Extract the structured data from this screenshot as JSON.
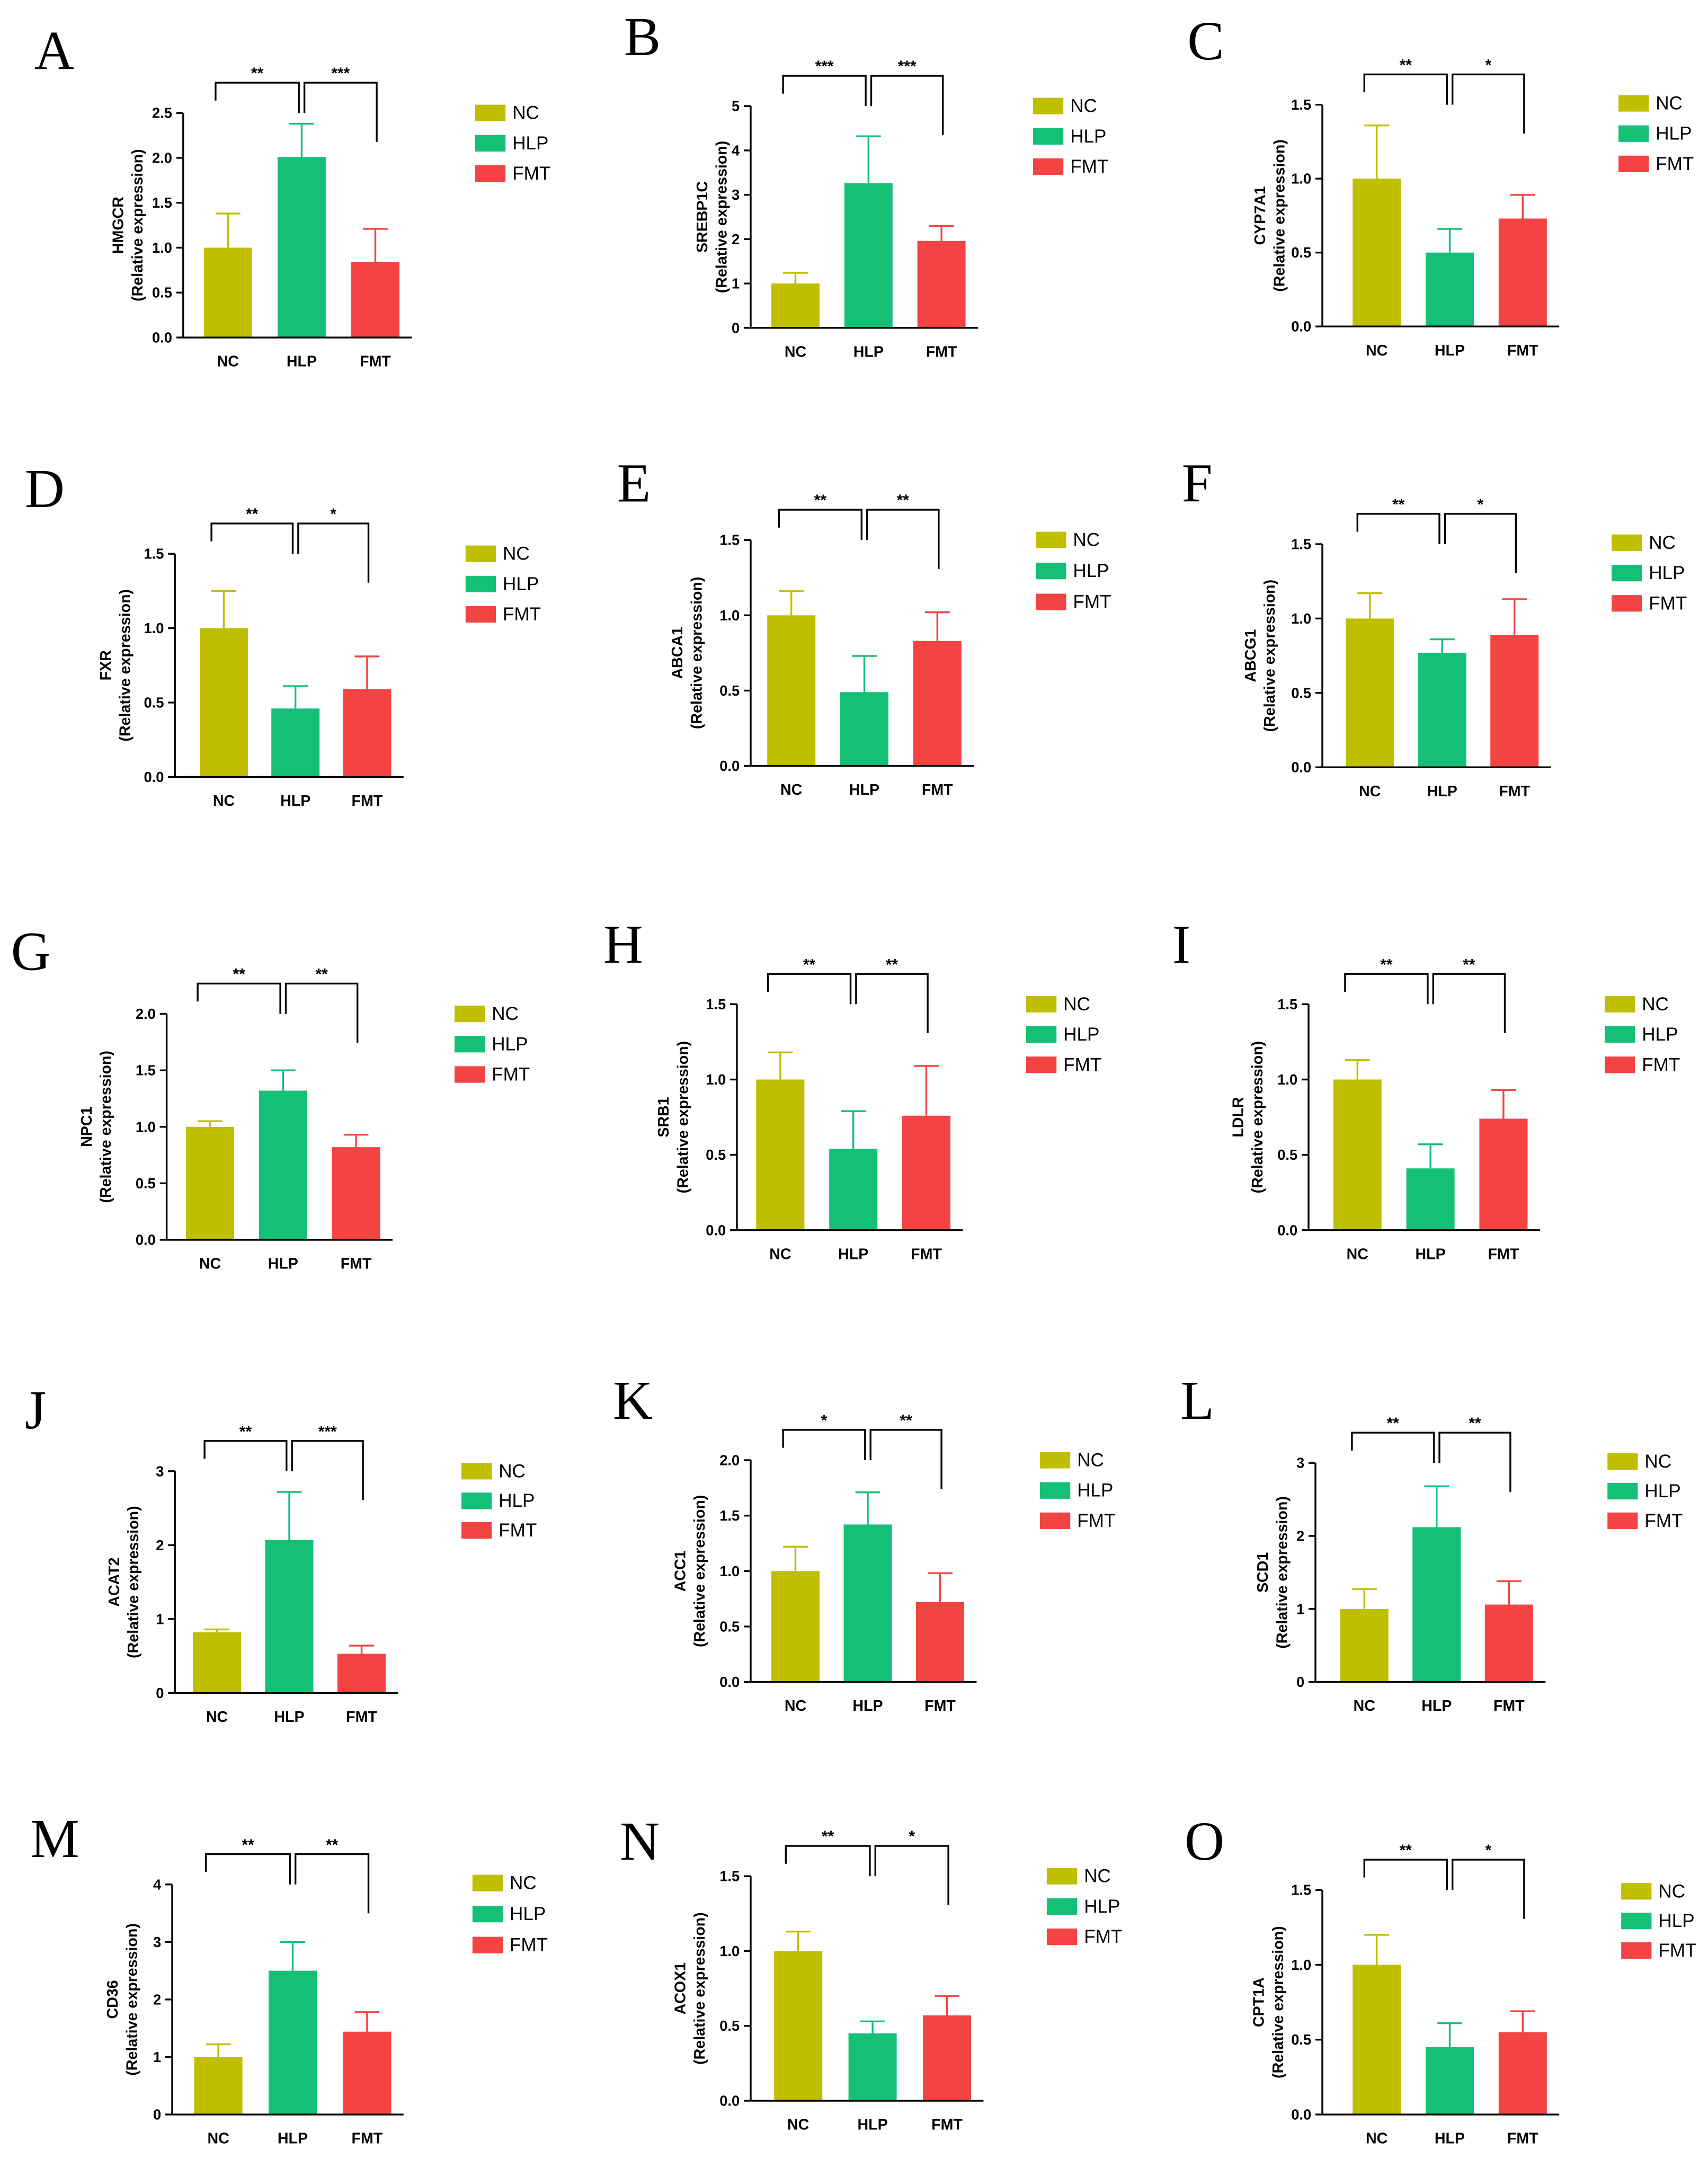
{
  "colors": {
    "NC": "#BFBF00",
    "HLP": "#14C076",
    "FMT": "#F44343"
  },
  "chart_data": [
    {
      "panel": "A",
      "type": "bar",
      "ylabel": "HMGCR",
      "ylabel_unit": "(Relative expression)",
      "categories": [
        "NC",
        "HLP",
        "FMT"
      ],
      "legend": [
        "NC",
        "HLP",
        "FMT"
      ],
      "values": [
        1.0,
        2.01,
        0.84
      ],
      "errors": [
        0.38,
        0.37,
        0.37
      ],
      "ylim": [
        0,
        2.5
      ],
      "ytick_labels": [
        "0.0",
        "0.5",
        "1.0",
        "1.5",
        "2.0",
        "2.5"
      ],
      "significance": [
        {
          "groups": [
            0,
            1
          ],
          "label": "**"
        },
        {
          "groups": [
            1,
            2
          ],
          "label": "***"
        }
      ]
    },
    {
      "panel": "B",
      "type": "bar",
      "ylabel": "SREBP1C",
      "ylabel_unit": "(Relative expression)",
      "categories": [
        "NC",
        "HLP",
        "FMT"
      ],
      "legend": [
        "NC",
        "HLP",
        "FMT"
      ],
      "values": [
        1.0,
        3.26,
        1.96
      ],
      "errors": [
        0.24,
        1.06,
        0.34
      ],
      "ylim": [
        0,
        5
      ],
      "ytick_labels": [
        "0",
        "1",
        "2",
        "3",
        "4",
        "5"
      ],
      "significance": [
        {
          "groups": [
            0,
            1
          ],
          "label": "***"
        },
        {
          "groups": [
            1,
            2
          ],
          "label": "***"
        }
      ]
    },
    {
      "panel": "C",
      "type": "bar",
      "ylabel": "CYP7A1",
      "ylabel_unit": "(Relative expression)",
      "categories": [
        "NC",
        "HLP",
        "FMT"
      ],
      "legend": [
        "NC",
        "HLP",
        "FMT"
      ],
      "values": [
        1.0,
        0.5,
        0.73
      ],
      "errors": [
        0.36,
        0.16,
        0.16
      ],
      "ylim": [
        0,
        1.5
      ],
      "ytick_labels": [
        "0.0",
        "0.5",
        "1.0",
        "1.5"
      ],
      "significance": [
        {
          "groups": [
            0,
            1
          ],
          "label": "**"
        },
        {
          "groups": [
            1,
            2
          ],
          "label": "*"
        }
      ]
    },
    {
      "panel": "D",
      "type": "bar",
      "ylabel": "FXR",
      "ylabel_unit": "(Relative expression)",
      "categories": [
        "NC",
        "HLP",
        "FMT"
      ],
      "legend": [
        "NC",
        "HLP",
        "FMT"
      ],
      "values": [
        1.0,
        0.46,
        0.59
      ],
      "errors": [
        0.25,
        0.15,
        0.22
      ],
      "ylim": [
        0,
        1.5
      ],
      "ytick_labels": [
        "0.0",
        "0.5",
        "1.0",
        "1.5"
      ],
      "significance": [
        {
          "groups": [
            0,
            1
          ],
          "label": "**"
        },
        {
          "groups": [
            1,
            2
          ],
          "label": "*"
        }
      ]
    },
    {
      "panel": "E",
      "type": "bar",
      "ylabel": "ABCA1",
      "ylabel_unit": "(Relative expression)",
      "categories": [
        "NC",
        "HLP",
        "FMT"
      ],
      "legend": [
        "NC",
        "HLP",
        "FMT"
      ],
      "values": [
        1.0,
        0.49,
        0.83
      ],
      "errors": [
        0.16,
        0.24,
        0.19
      ],
      "ylim": [
        0,
        1.5
      ],
      "ytick_labels": [
        "0.0",
        "0.5",
        "1.0",
        "1.5"
      ],
      "significance": [
        {
          "groups": [
            0,
            1
          ],
          "label": "**"
        },
        {
          "groups": [
            1,
            2
          ],
          "label": "**"
        }
      ]
    },
    {
      "panel": "F",
      "type": "bar",
      "ylabel": "ABCG1",
      "ylabel_unit": "(Relative expression)",
      "categories": [
        "NC",
        "HLP",
        "FMT"
      ],
      "legend": [
        "NC",
        "HLP",
        "FMT"
      ],
      "values": [
        1.0,
        0.77,
        0.89
      ],
      "errors": [
        0.17,
        0.09,
        0.24
      ],
      "ylim": [
        0,
        1.5
      ],
      "ytick_labels": [
        "0.0",
        "0.5",
        "1.0",
        "1.5"
      ],
      "significance": [
        {
          "groups": [
            0,
            1
          ],
          "label": "**"
        },
        {
          "groups": [
            1,
            2
          ],
          "label": "*"
        }
      ]
    },
    {
      "panel": "G",
      "type": "bar",
      "ylabel": "NPC1",
      "ylabel_unit": "(Relative expression)",
      "categories": [
        "NC",
        "HLP",
        "FMT"
      ],
      "legend": [
        "NC",
        "HLP",
        "FMT"
      ],
      "values": [
        1.0,
        1.32,
        0.82
      ],
      "errors": [
        0.05,
        0.18,
        0.11
      ],
      "ylim": [
        0,
        2.0
      ],
      "ytick_labels": [
        "0.0",
        "0.5",
        "1.0",
        "1.5",
        "2.0"
      ],
      "significance": [
        {
          "groups": [
            0,
            1
          ],
          "label": "**"
        },
        {
          "groups": [
            1,
            2
          ],
          "label": "**"
        }
      ]
    },
    {
      "panel": "H",
      "type": "bar",
      "ylabel": "SRB1",
      "ylabel_unit": "(Relative expression)",
      "categories": [
        "NC",
        "HLP",
        "FMT"
      ],
      "legend": [
        "NC",
        "HLP",
        "FMT"
      ],
      "values": [
        1.0,
        0.54,
        0.76
      ],
      "errors": [
        0.18,
        0.25,
        0.33
      ],
      "ylim": [
        0,
        1.5
      ],
      "ytick_labels": [
        "0.0",
        "0.5",
        "1.0",
        "1.5"
      ],
      "significance": [
        {
          "groups": [
            0,
            1
          ],
          "label": "**"
        },
        {
          "groups": [
            1,
            2
          ],
          "label": "**"
        }
      ]
    },
    {
      "panel": "I",
      "type": "bar",
      "ylabel": "LDLR",
      "ylabel_unit": "(Relative expression)",
      "categories": [
        "NC",
        "HLP",
        "FMT"
      ],
      "legend": [
        "NC",
        "HLP",
        "FMT"
      ],
      "values": [
        1.0,
        0.41,
        0.74
      ],
      "errors": [
        0.13,
        0.16,
        0.19
      ],
      "ylim": [
        0,
        1.5
      ],
      "ytick_labels": [
        "0.0",
        "0.5",
        "1.0",
        "1.5"
      ],
      "significance": [
        {
          "groups": [
            0,
            1
          ],
          "label": "**"
        },
        {
          "groups": [
            1,
            2
          ],
          "label": "**"
        }
      ]
    },
    {
      "panel": "J",
      "type": "bar",
      "ylabel": "ACAT2",
      "ylabel_unit": "(Relative expression)",
      "categories": [
        "NC",
        "HLP",
        "FMT"
      ],
      "legend": [
        "NC",
        "HLP",
        "FMT"
      ],
      "values": [
        0.82,
        2.07,
        0.53
      ],
      "errors": [
        0.04,
        0.65,
        0.11
      ],
      "ylim": [
        0,
        3
      ],
      "ytick_labels": [
        "0",
        "1",
        "2",
        "3"
      ],
      "significance": [
        {
          "groups": [
            0,
            1
          ],
          "label": "**"
        },
        {
          "groups": [
            1,
            2
          ],
          "label": "***"
        }
      ]
    },
    {
      "panel": "K",
      "type": "bar",
      "ylabel": "ACC1",
      "ylabel_unit": "(Relative expression)",
      "categories": [
        "NC",
        "HLP",
        "FMT"
      ],
      "legend": [
        "NC",
        "HLP",
        "FMT"
      ],
      "values": [
        1.0,
        1.42,
        0.72
      ],
      "errors": [
        0.22,
        0.29,
        0.26
      ],
      "ylim": [
        0,
        2.0
      ],
      "ytick_labels": [
        "0.0",
        "0.5",
        "1.0",
        "1.5",
        "2.0"
      ],
      "significance": [
        {
          "groups": [
            0,
            1
          ],
          "label": "*"
        },
        {
          "groups": [
            1,
            2
          ],
          "label": "**"
        }
      ]
    },
    {
      "panel": "L",
      "type": "bar",
      "ylabel": "SCD1",
      "ylabel_unit": "(Relative expression)",
      "categories": [
        "NC",
        "HLP",
        "FMT"
      ],
      "legend": [
        "NC",
        "HLP",
        "FMT"
      ],
      "values": [
        1.0,
        2.12,
        1.06
      ],
      "errors": [
        0.27,
        0.56,
        0.32
      ],
      "ylim": [
        0,
        3
      ],
      "ytick_labels": [
        "0",
        "1",
        "2",
        "3"
      ],
      "significance": [
        {
          "groups": [
            0,
            1
          ],
          "label": "**"
        },
        {
          "groups": [
            1,
            2
          ],
          "label": "**"
        }
      ]
    },
    {
      "panel": "M",
      "type": "bar",
      "ylabel": "CD36",
      "ylabel_unit": "(Relative expression)",
      "categories": [
        "NC",
        "HLP",
        "FMT"
      ],
      "legend": [
        "NC",
        "HLP",
        "FMT"
      ],
      "values": [
        1.0,
        2.5,
        1.44
      ],
      "errors": [
        0.22,
        0.5,
        0.34
      ],
      "ylim": [
        0,
        4
      ],
      "ytick_labels": [
        "0",
        "1",
        "2",
        "3",
        "4"
      ],
      "significance": [
        {
          "groups": [
            0,
            1
          ],
          "label": "**"
        },
        {
          "groups": [
            1,
            2
          ],
          "label": "**"
        }
      ]
    },
    {
      "panel": "N",
      "type": "bar",
      "ylabel": "ACOX1",
      "ylabel_unit": "(Relative expression)",
      "categories": [
        "NC",
        "HLP",
        "FMT"
      ],
      "legend": [
        "NC",
        "HLP",
        "FMT"
      ],
      "values": [
        1.0,
        0.45,
        0.57
      ],
      "errors": [
        0.13,
        0.08,
        0.13
      ],
      "ylim": [
        0,
        1.5
      ],
      "ytick_labels": [
        "0.0",
        "0.5",
        "1.0",
        "1.5"
      ],
      "significance": [
        {
          "groups": [
            0,
            1
          ],
          "label": "**"
        },
        {
          "groups": [
            1,
            2
          ],
          "label": "*"
        }
      ]
    },
    {
      "panel": "O",
      "type": "bar",
      "ylabel": "CPT1A",
      "ylabel_unit": "(Relative expression)",
      "categories": [
        "NC",
        "HLP",
        "FMT"
      ],
      "legend": [
        "NC",
        "HLP",
        "FMT"
      ],
      "values": [
        1.0,
        0.45,
        0.55
      ],
      "errors": [
        0.2,
        0.16,
        0.14
      ],
      "ylim": [
        0,
        1.5
      ],
      "ytick_labels": [
        "0.0",
        "0.5",
        "1.0",
        "1.5"
      ],
      "significance": [
        {
          "groups": [
            0,
            1
          ],
          "label": "**"
        },
        {
          "groups": [
            1,
            2
          ],
          "label": "*"
        }
      ]
    }
  ]
}
